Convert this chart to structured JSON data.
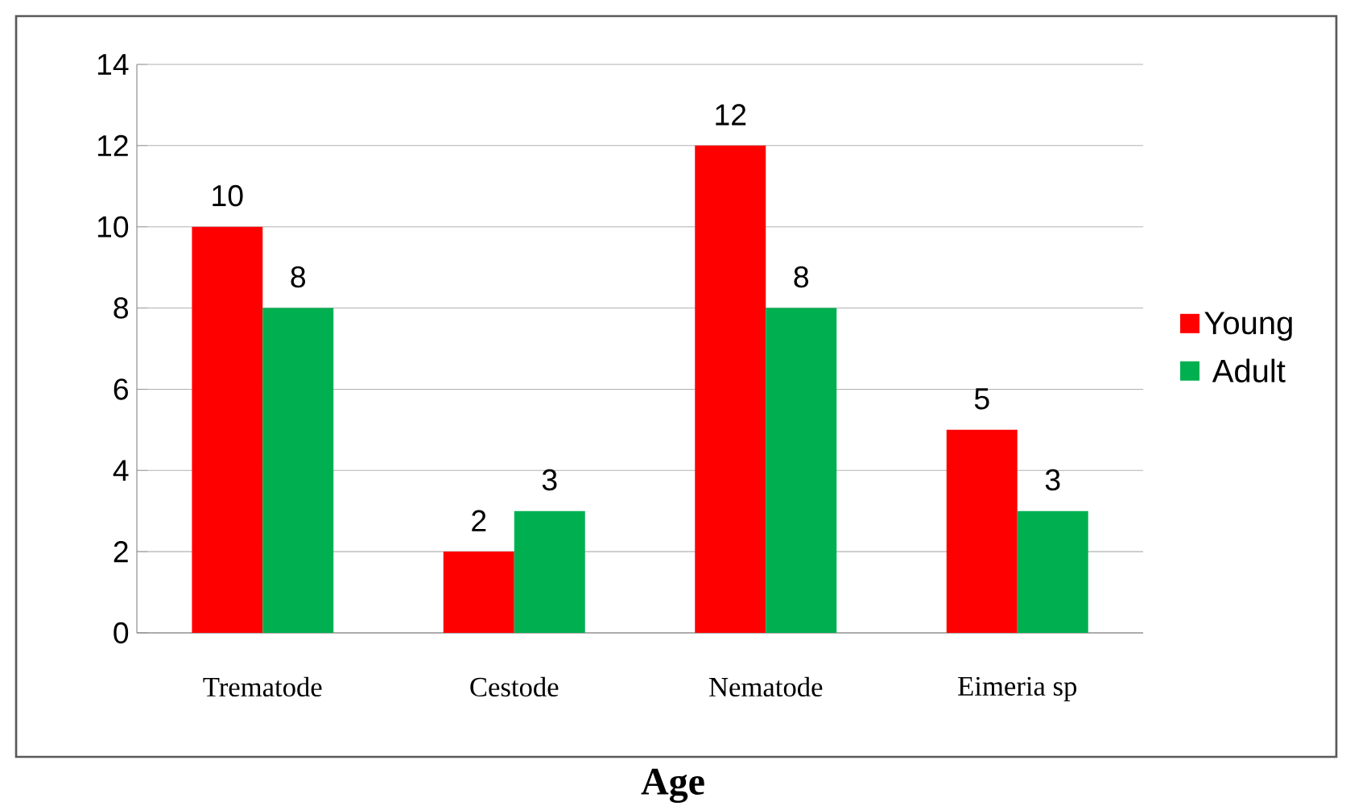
{
  "chart_data": {
    "type": "bar",
    "xlabel": "Age",
    "categories": [
      "Trematode",
      "Cestode",
      "Nematode",
      "Eimeria sp"
    ],
    "series": [
      {
        "name": "Young",
        "color": "#ff0000",
        "values": [
          10,
          2,
          12,
          5
        ]
      },
      {
        "name": "Adult",
        "color": "#00b050",
        "values": [
          8,
          3,
          8,
          3
        ]
      }
    ],
    "ylim": [
      0,
      14
    ],
    "yticks": [
      0,
      2,
      4,
      6,
      8,
      10,
      12,
      14
    ],
    "grid": "y",
    "legend": "right",
    "data_labels": true
  }
}
